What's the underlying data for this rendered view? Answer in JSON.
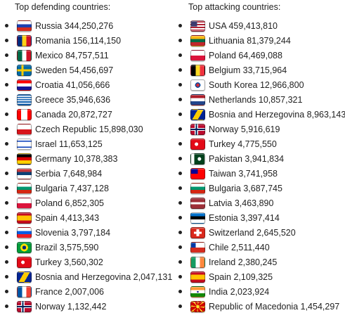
{
  "defending": {
    "heading": "Top defending countries:",
    "items": [
      {
        "text": "Russia 344,250,276",
        "flag": "flag-russia",
        "bg": "linear-gradient(#ffffff 0 33%, #1c3fb0 33% 66%, #d52b1e 66%)"
      },
      {
        "text": "Romania 156,114,150",
        "flag": "flag-romania",
        "bg": "linear-gradient(90deg, #002b7f 0 33%, #fcd116 33% 66%, #ce1126 66%)"
      },
      {
        "text": "Mexico 84,757,511",
        "flag": "flag-mexico",
        "bg": "linear-gradient(90deg, #006847 0 33%, #ffffff 33% 66%, #ce1126 66%)"
      },
      {
        "text": "Sweden 54,456,697",
        "flag": "flag-sweden",
        "bg": "linear-gradient(#0000 0 40%, #fecc00 40% 60%, #0000 60%), linear-gradient(90deg, #0000 0 30%, #fecc00 30% 45%, #0000 45%), #006aa7"
      },
      {
        "text": "Croatia 41,056,666",
        "flag": "flag-croatia",
        "bg": "linear-gradient(#ff0000 0 33%, #ffffff 33% 66%, #171796 66%)"
      },
      {
        "text": "Greece 35,946,636",
        "flag": "flag-greece",
        "bg": "repeating-linear-gradient(#0d5eaf 0 11%, #ffffff 11% 22%)"
      },
      {
        "text": "Canada 20,872,727",
        "flag": "flag-canada",
        "bg": "linear-gradient(90deg, #ff0000 0 26%, #ffffff 26% 74%, #ff0000 74%)"
      },
      {
        "text": "Czech Republic 15,898,030",
        "flag": "flag-czech",
        "bg": "linear-gradient(#ffffff 0 50%, #d7141a 50%)"
      },
      {
        "text": "Israel 11,653,125",
        "flag": "flag-israel",
        "bg": "linear-gradient(#ffffff 0 14%, #0038b8 14% 26%, #ffffff 26% 74%, #0038b8 74% 86%, #ffffff 86%)"
      },
      {
        "text": "Germany 10,378,383",
        "flag": "flag-germany",
        "bg": "linear-gradient(#000000 0 33%, #dd0000 33% 66%, #ffce00 66%)"
      },
      {
        "text": "Serbia 7,648,984",
        "flag": "flag-serbia",
        "bg": "linear-gradient(#c6363c 0 33%, #0c4076 33% 66%, #ffffff 66%)"
      },
      {
        "text": "Bulgaria 7,437,128",
        "flag": "flag-bulgaria",
        "bg": "linear-gradient(#ffffff 0 33%, #00966e 33% 66%, #d62612 66%)"
      },
      {
        "text": "Poland 6,852,305",
        "flag": "flag-poland",
        "bg": "linear-gradient(#ffffff 0 50%, #dc143c 50%)"
      },
      {
        "text": "Spain 4,413,343",
        "flag": "flag-spain",
        "bg": "linear-gradient(#c60b1e 0 25%, #ffc400 25% 75%, #c60b1e 75%)"
      },
      {
        "text": "Slovenia 3,797,184",
        "flag": "flag-slovenia",
        "bg": "linear-gradient(#ffffff 0 33%, #005ce5 33% 66%, #ed1c24 66%)"
      },
      {
        "text": "Brazil 3,575,590",
        "flag": "flag-brazil",
        "bg": "radial-gradient(circle, #002776 0 22%, #ffdf00 23% 45%, #009c3b 46%)"
      },
      {
        "text": "Turkey 3,560,302",
        "flag": "flag-turkey",
        "bg": "radial-gradient(circle at 40% 50%, #ffffff 0 18%, #e30a17 19%)"
      },
      {
        "text": "Bosnia and Herzegovina 2,047,131",
        "flag": "flag-bosnia",
        "bg": "linear-gradient(120deg, #002395 0 35%, #fecb00 35% 65%, #002395 65%)"
      },
      {
        "text": "France 2,007,006",
        "flag": "flag-france",
        "bg": "linear-gradient(90deg, #0055a4 0 33%, #ffffff 33% 66%, #ef4135 66%)"
      },
      {
        "text": "Norway 1,132,442",
        "flag": "flag-norway",
        "bg": "linear-gradient(#0000 0 42%, #00205b 42% 58%, #0000 58%), linear-gradient(90deg, #0000 0 33%, #00205b 33% 45%, #0000 45%), linear-gradient(#0000 0 34%, #ffffff 34% 66%, #0000 66%), linear-gradient(90deg, #0000 0 26%, #ffffff 26% 52%, #0000 52%), #ba0c2f"
      }
    ]
  },
  "attacking": {
    "heading": "Top attacking countries:",
    "items": [
      {
        "text": "USA 459,413,810",
        "flag": "flag-usa",
        "bg": "linear-gradient(90deg, #3c3b6e 0 45%, #0000 45%) 0 0 / 100% 55% no-repeat, repeating-linear-gradient(#b22234 0 14%, #ffffff 14% 28%)"
      },
      {
        "text": "Lithuania 81,379,244",
        "flag": "flag-lithuania",
        "bg": "linear-gradient(#fdb913 0 33%, #006a44 33% 66%, #c1272d 66%)"
      },
      {
        "text": "Poland 64,469,088",
        "flag": "flag-poland",
        "bg": "linear-gradient(#ffffff 0 50%, #dc143c 50%)"
      },
      {
        "text": "Belgium 33,715,964",
        "flag": "flag-belgium",
        "bg": "linear-gradient(90deg, #000000 0 33%, #fdda24 33% 66%, #ef3340 66%)"
      },
      {
        "text": "South Korea 12,966,800",
        "flag": "flag-south-korea",
        "bg": "radial-gradient(circle, #cd2e3a 0 20%, #0047a0 21% 32%, #ffffff 33%)"
      },
      {
        "text": "Netherlands 10,857,321",
        "flag": "flag-netherlands",
        "bg": "linear-gradient(#ae1c28 0 33%, #ffffff 33% 66%, #21468b 66%)"
      },
      {
        "text": "Bosnia and Herzegovina 8,963,143",
        "flag": "flag-bosnia",
        "bg": "linear-gradient(120deg, #002395 0 35%, #fecb00 35% 65%, #002395 65%)"
      },
      {
        "text": "Norway 5,916,619",
        "flag": "flag-norway",
        "bg": "linear-gradient(#0000 0 42%, #00205b 42% 58%, #0000 58%), linear-gradient(90deg, #0000 0 33%, #00205b 33% 45%, #0000 45%), linear-gradient(#0000 0 34%, #ffffff 34% 66%, #0000 66%), linear-gradient(90deg, #0000 0 26%, #ffffff 26% 52%, #0000 52%), #ba0c2f"
      },
      {
        "text": "Turkey 4,775,550",
        "flag": "flag-turkey",
        "bg": "radial-gradient(circle at 40% 50%, #ffffff 0 18%, #e30a17 19%)"
      },
      {
        "text": "Pakistan 3,941,834",
        "flag": "flag-pakistan",
        "bg": "radial-gradient(circle at 62% 50%, #ffffff 0 18%, #0000 19%), linear-gradient(90deg, #ffffff 0 25%, #01411c 25%)"
      },
      {
        "text": "Taiwan 3,741,958",
        "flag": "flag-taiwan",
        "bg": "linear-gradient(90deg, #000095 0 50%, #0000 50%) 0 0 / 100% 50% no-repeat, #fe0000"
      },
      {
        "text": "Bulgaria 3,687,745",
        "flag": "flag-bulgaria",
        "bg": "linear-gradient(#ffffff 0 33%, #00966e 33% 66%, #d62612 66%)"
      },
      {
        "text": "Latvia 3,463,890",
        "flag": "flag-latvia",
        "bg": "linear-gradient(#9e3039 0 40%, #ffffff 40% 60%, #9e3039 60%)"
      },
      {
        "text": "Estonia 3,397,414",
        "flag": "flag-estonia",
        "bg": "linear-gradient(#0072ce 0 33%, #000000 33% 66%, #ffffff 66%)"
      },
      {
        "text": "Switzerland 2,645,520",
        "flag": "flag-switzerland",
        "bg": "linear-gradient(#0000 0 40%, #ffffff 40% 60%, #0000 60%) 50% 50% / 60% 100% no-repeat, linear-gradient(90deg, #0000 0 40%, #ffffff 40% 60%, #0000 60%) 50% 50% / 100% 70% no-repeat, #da291c"
      },
      {
        "text": "Chile 2,511,440",
        "flag": "flag-chile",
        "bg": "linear-gradient(90deg, #0039a6 0 35%, #ffffff 35%) 0 0 / 100% 50% no-repeat, linear-gradient(#ffffff 0 50%, #d52b1e 50%)"
      },
      {
        "text": "Ireland 2,380,245",
        "flag": "flag-ireland",
        "bg": "linear-gradient(90deg, #169b62 0 33%, #ffffff 33% 66%, #ff883e 66%)"
      },
      {
        "text": "Spain 2,109,325",
        "flag": "flag-spain",
        "bg": "linear-gradient(#c60b1e 0 25%, #ffc400 25% 75%, #c60b1e 75%)"
      },
      {
        "text": "India 2,023,924",
        "flag": "flag-india",
        "bg": "radial-gradient(circle, #000080 0 10%, #0000 11%), linear-gradient(#ff9933 0 33%, #ffffff 33% 66%, #138808 66%)"
      },
      {
        "text": "Republic of Macedonia 1,454,297",
        "flag": "flag-macedonia",
        "bg": "radial-gradient(circle, #f8e92e 0 18%, #0000 19%), repeating-conic-gradient(#f8e92e 0 10deg, #d20000 10deg 45deg)"
      }
    ]
  }
}
